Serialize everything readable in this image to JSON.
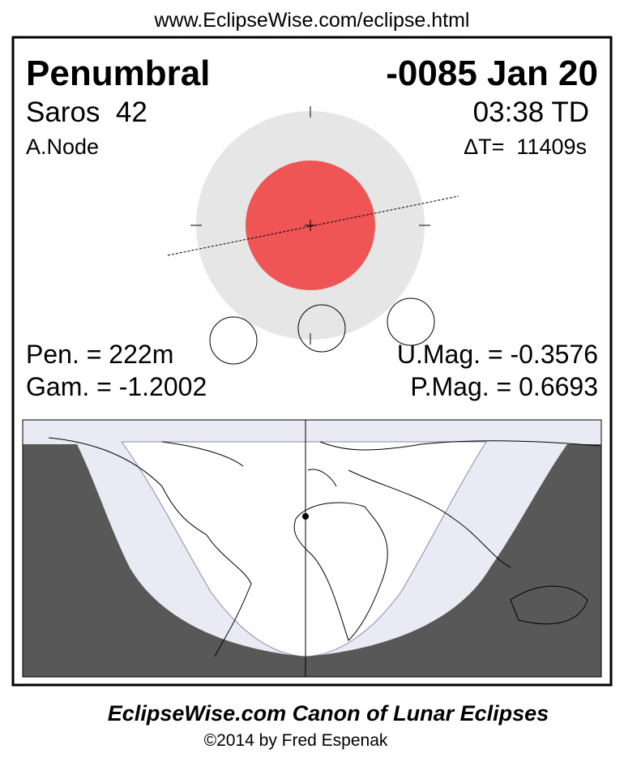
{
  "header": {
    "url": "www.EclipseWise.com/eclipse.html"
  },
  "eclipse": {
    "type": "Penumbral",
    "date": "-0085 Jan 20",
    "saros": "Saros  42",
    "time": "03:38 TD",
    "node": "A.Node",
    "delta_t": "ΔT=  11409s",
    "pen": "Pen. = 222m",
    "gam": "Gam. = -1.2002",
    "umag": "U.Mag. = -0.3576",
    "pmag": "P.Mag. = 0.6693"
  },
  "footer": {
    "title": "EclipseWise.com Canon of Lunar Eclipses",
    "credit": "©2014 by Fred Espenak"
  }
}
